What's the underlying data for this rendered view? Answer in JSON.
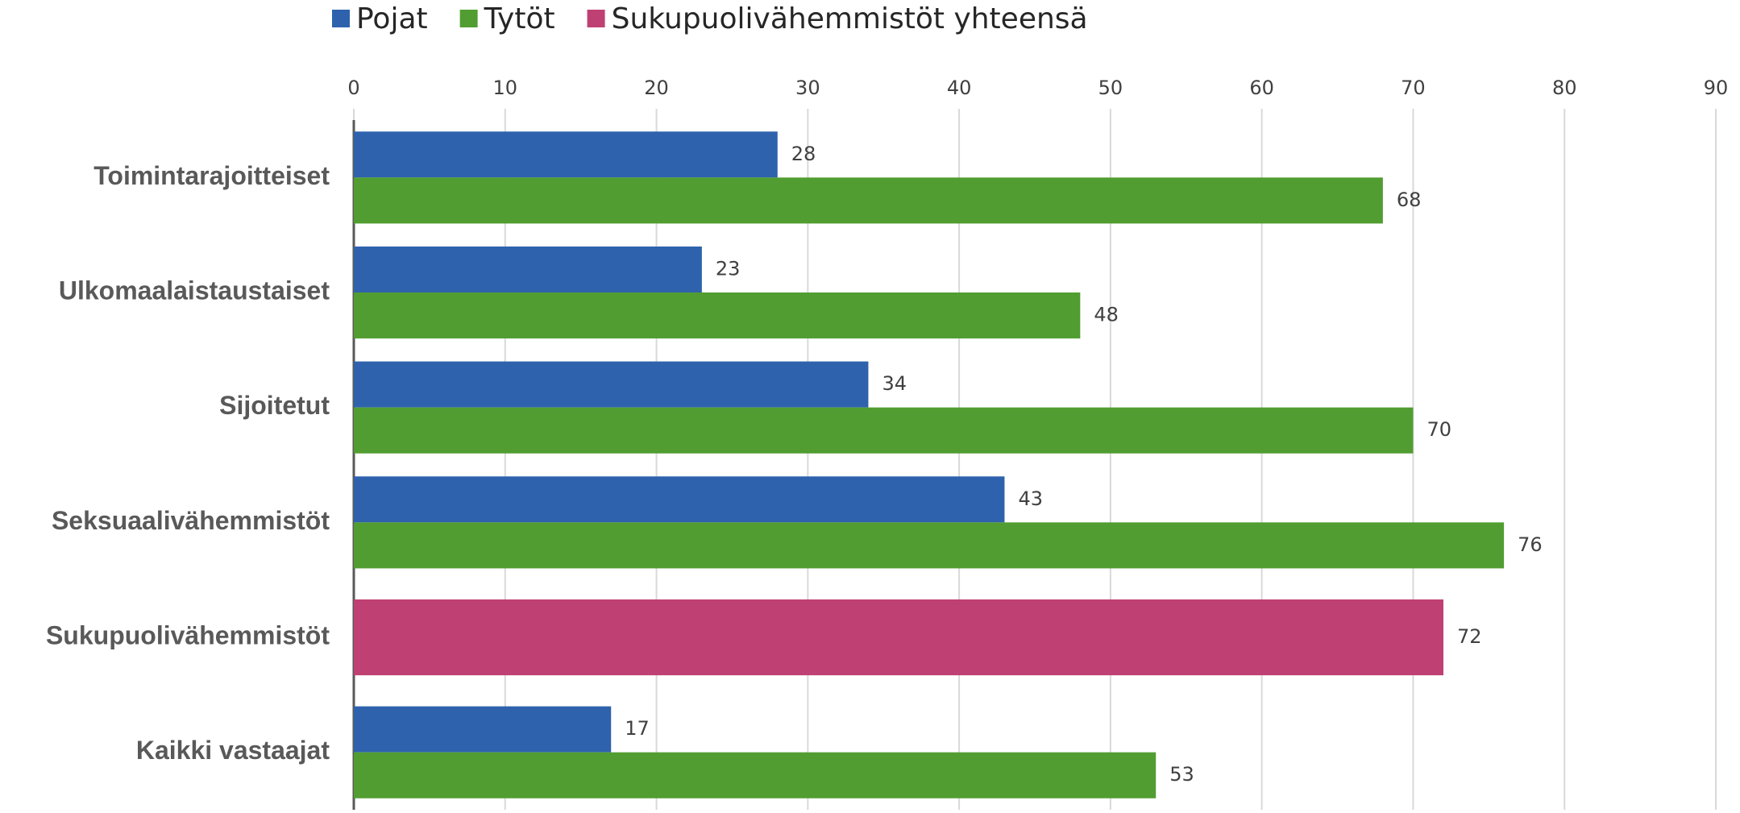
{
  "chart_data": {
    "type": "hbar",
    "categories": [
      "Toimintarajoitteiset",
      "Ulkomaalaistaustaiset",
      "Sijoitetut",
      "Seksuaalivähemmistöt",
      "Sukupuolivähemmistöt",
      "Kaikki vastaajat"
    ],
    "series": [
      {
        "name": "Pojat",
        "color": "#2e62ad",
        "values": [
          28,
          23,
          34,
          43,
          null,
          17
        ]
      },
      {
        "name": "Tytöt",
        "color": "#519d31",
        "values": [
          68,
          48,
          70,
          76,
          null,
          53
        ]
      },
      {
        "name": "Sukupuolivähemmistöt yhteensä",
        "color": "#bf4073",
        "values": [
          null,
          null,
          null,
          null,
          72,
          null
        ]
      }
    ],
    "xlim": [
      0,
      90
    ],
    "xticks": [
      0,
      10,
      20,
      30,
      40,
      50,
      60,
      70,
      80,
      90
    ],
    "grid": true,
    "legend": "top"
  }
}
